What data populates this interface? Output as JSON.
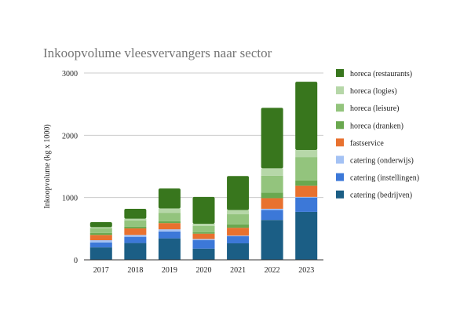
{
  "chart_data": {
    "type": "bar",
    "stacked": true,
    "title": "Inkoopvolume vleesvervangers naar sector",
    "xlabel": "",
    "ylabel": "Inkoopvolume (kg x 1000)",
    "ylim": [
      0,
      3000
    ],
    "yticks": [
      0,
      1000,
      2000,
      3000
    ],
    "grid": true,
    "legend_position": "right",
    "categories": [
      "2017",
      "2018",
      "2019",
      "2020",
      "2021",
      "2022",
      "2023"
    ],
    "series": [
      {
        "name": "catering (bedrijven)",
        "color": "#1b5e85",
        "values": [
          200,
          270,
          345,
          180,
          265,
          640,
          770
        ]
      },
      {
        "name": "catering (instellingen)",
        "color": "#3c78d8",
        "values": [
          80,
          100,
          110,
          135,
          115,
          160,
          230
        ]
      },
      {
        "name": "catering (onderwijs)",
        "color": "#a4c2f4",
        "values": [
          35,
          30,
          35,
          20,
          10,
          20,
          10
        ]
      },
      {
        "name": "fastservice",
        "color": "#e8712f",
        "values": [
          85,
          105,
          100,
          85,
          125,
          170,
          180
        ]
      },
      {
        "name": "horeca (dranken)",
        "color": "#6aa84f",
        "values": [
          30,
          25,
          30,
          25,
          55,
          90,
          85
        ]
      },
      {
        "name": "horeca (leisure)",
        "color": "#93c47d",
        "values": [
          75,
          100,
          135,
          100,
          165,
          270,
          375
        ]
      },
      {
        "name": "horeca (logies)",
        "color": "#b6d7a8",
        "values": [
          20,
          30,
          70,
          35,
          65,
          120,
          115
        ]
      },
      {
        "name": "horeca (restaurants)",
        "color": "#38761d",
        "values": [
          80,
          160,
          320,
          430,
          545,
          970,
          1095
        ]
      }
    ]
  }
}
